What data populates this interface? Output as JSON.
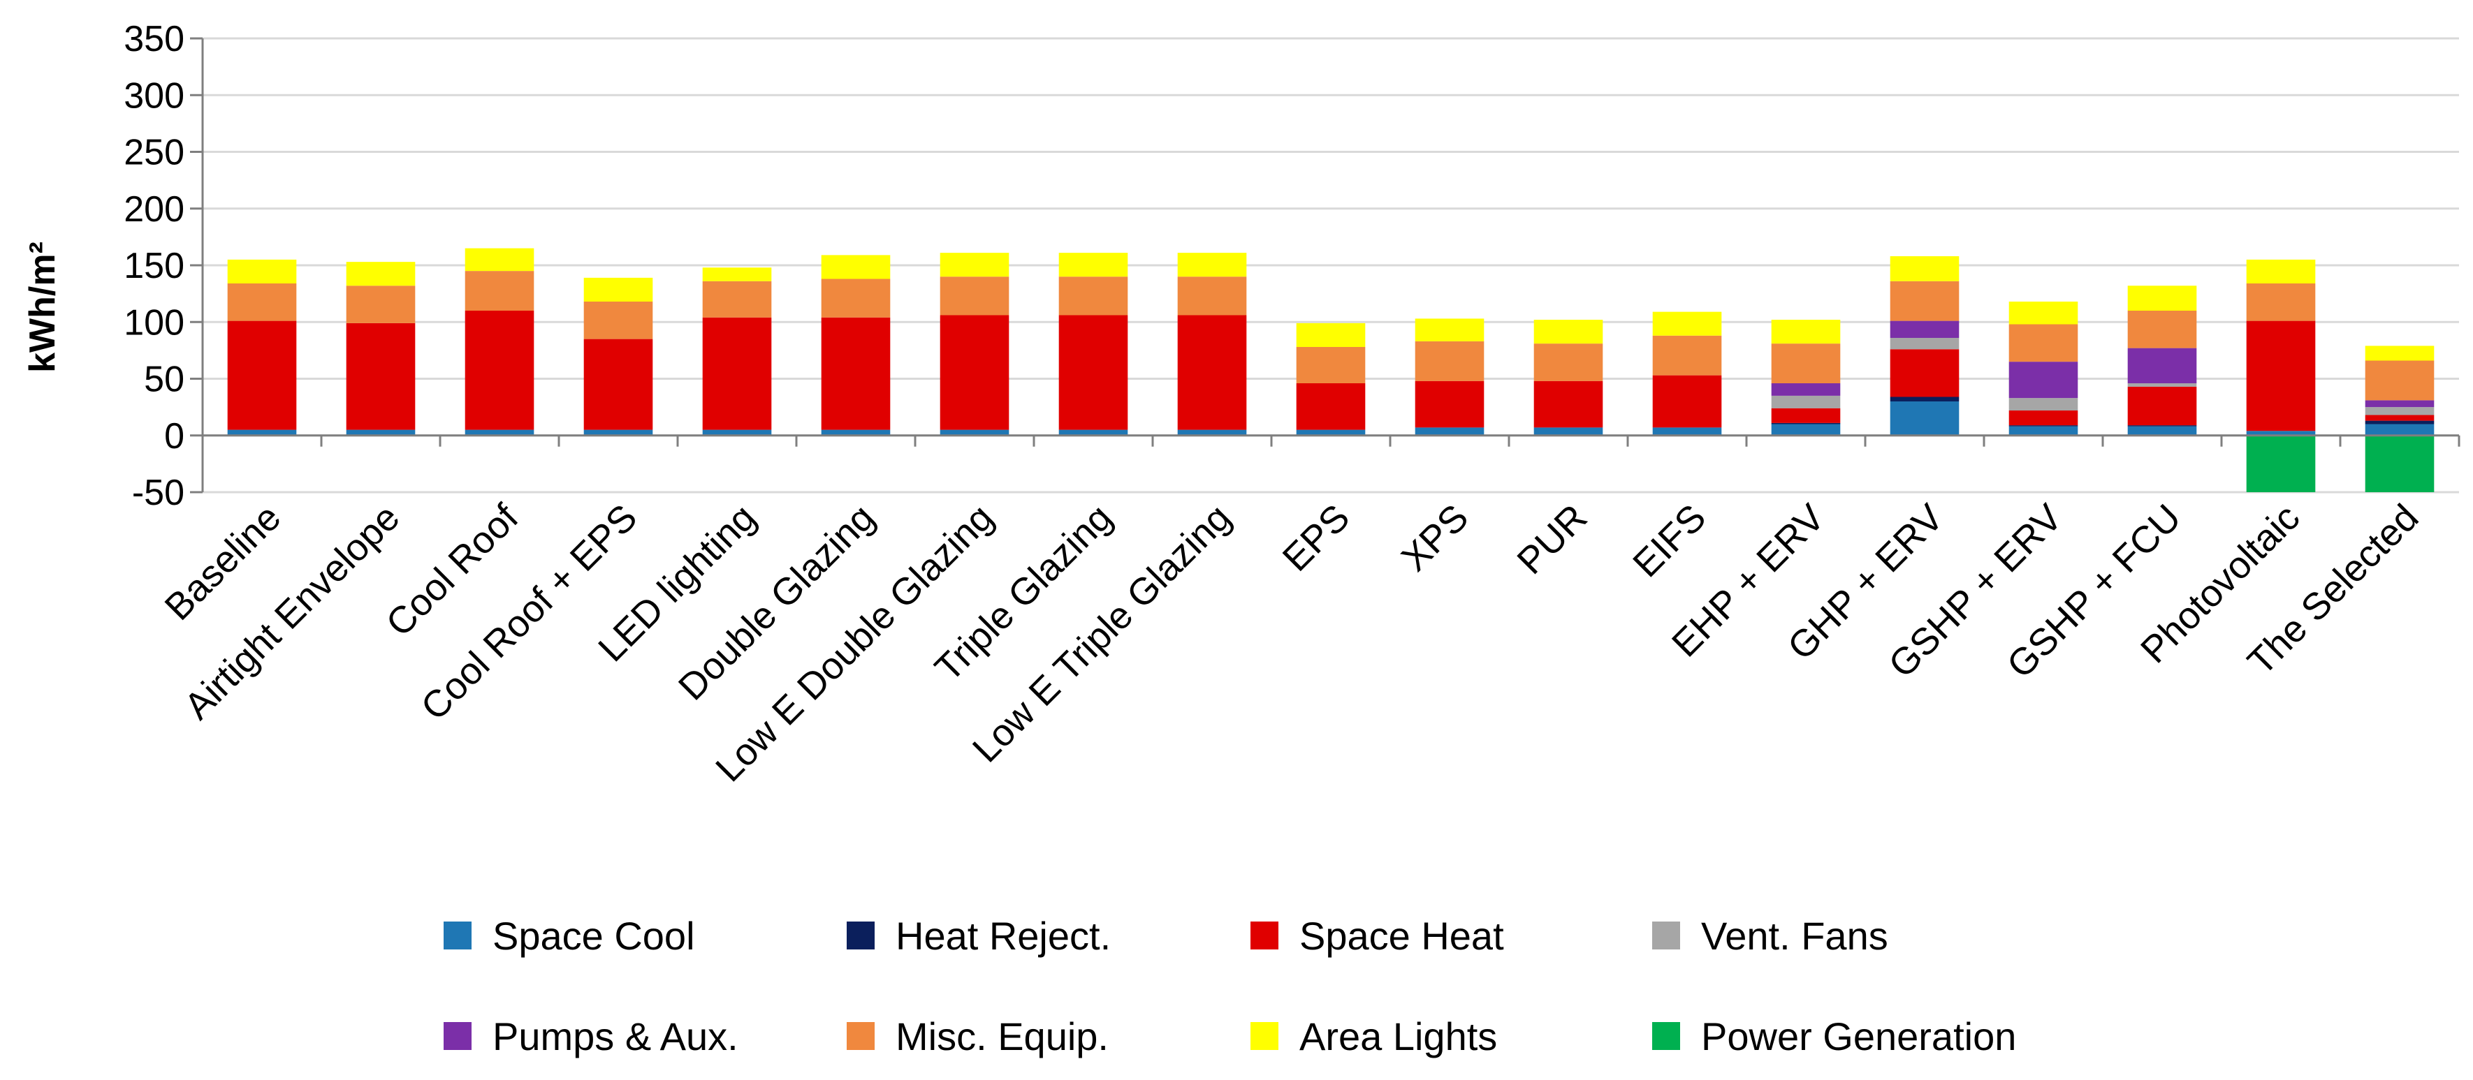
{
  "chart_data": {
    "type": "bar",
    "stacked": true,
    "title": "",
    "xlabel": "",
    "ylabel": "kWh/m²",
    "ylim": [
      -50,
      350
    ],
    "yticks": [
      350,
      300,
      250,
      200,
      150,
      100,
      50,
      0,
      -50
    ],
    "grid": "horizontal",
    "legend_position": "bottom",
    "categories": [
      "Baseline",
      "Airtight Envelope",
      "Cool Roof",
      "Cool Roof + EPS",
      "LED lighting",
      "Double Glazing",
      "Low E Double Glazing",
      "Triple Glazing",
      "Low E Triple Glazing",
      "EPS",
      "XPS",
      "PUR",
      "EIFS",
      "EHP + ERV",
      "GHP + ERV",
      "GSHP + ERV",
      "GSHP + FCU",
      "Photovoltaic",
      "The Selected"
    ],
    "series": [
      {
        "name": "Space Cool",
        "color": "#1F77B4",
        "values": [
          5,
          5,
          5,
          5,
          5,
          5,
          5,
          5,
          5,
          5,
          7,
          7,
          7,
          10,
          30,
          8,
          8,
          4,
          10
        ]
      },
      {
        "name": "Heat Reject.",
        "color": "#0B1F5C",
        "values": [
          0,
          0,
          0,
          0,
          0,
          0,
          0,
          0,
          0,
          0,
          0,
          0,
          0,
          1,
          4,
          1,
          1,
          0,
          3
        ]
      },
      {
        "name": "Space Heat",
        "color": "#E00000",
        "values": [
          96,
          94,
          105,
          80,
          99,
          99,
          101,
          101,
          101,
          41,
          41,
          41,
          46,
          13,
          42,
          13,
          34,
          97,
          5
        ]
      },
      {
        "name": "Vent. Fans",
        "color": "#A6A6A6",
        "values": [
          0,
          0,
          0,
          0,
          0,
          0,
          0,
          0,
          0,
          0,
          0,
          0,
          0,
          11,
          10,
          11,
          3,
          0,
          7
        ]
      },
      {
        "name": "Pumps & Aux.",
        "color": "#7B2FA8",
        "values": [
          0,
          0,
          0,
          0,
          0,
          0,
          0,
          0,
          0,
          0,
          0,
          0,
          0,
          11,
          15,
          32,
          31,
          0,
          6
        ]
      },
      {
        "name": "Misc. Equip.",
        "color": "#F0883E",
        "values": [
          33,
          33,
          35,
          33,
          32,
          34,
          34,
          34,
          34,
          32,
          35,
          33,
          35,
          35,
          35,
          33,
          33,
          33,
          35
        ]
      },
      {
        "name": "Area Lights",
        "color": "#FFFF00",
        "values": [
          21,
          21,
          20,
          21,
          12,
          21,
          21,
          21,
          21,
          21,
          20,
          21,
          21,
          21,
          22,
          20,
          22,
          21,
          13
        ]
      },
      {
        "name": "Power Generation",
        "color": "#00B050",
        "values": [
          0,
          0,
          0,
          0,
          0,
          0,
          0,
          0,
          0,
          0,
          0,
          0,
          0,
          0,
          0,
          0,
          0,
          -50,
          -50
        ]
      }
    ]
  }
}
